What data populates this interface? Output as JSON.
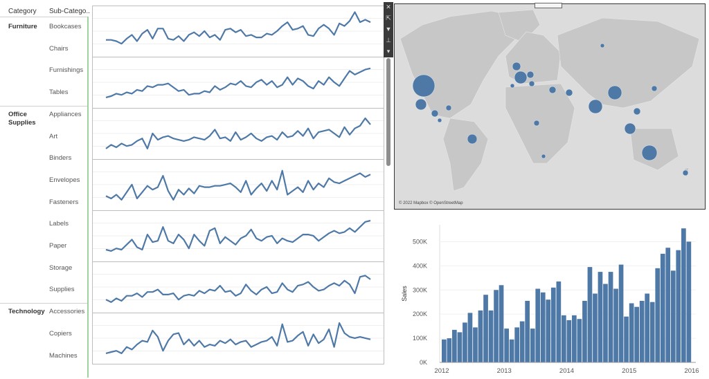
{
  "headers": {
    "category": "Category",
    "subcategory": "Sub-Catego.."
  },
  "categories": [
    {
      "name": "Furniture",
      "subcategories": [
        "Bookcases",
        "Chairs",
        "Furnishings",
        "Tables"
      ]
    },
    {
      "name": "Office\nSupplies",
      "subcategories": [
        "Appliances",
        "Art",
        "Binders",
        "Envelopes",
        "Fasteners",
        "Labels",
        "Paper",
        "Storage",
        "Supplies"
      ]
    },
    {
      "name": "Technology",
      "subcategories": [
        "Accessories",
        "Copiers",
        "Machines"
      ]
    }
  ],
  "toolbar_icons": [
    "close-icon",
    "popout-icon",
    "filter-icon",
    "pin-icon",
    "dropdown-icon"
  ],
  "map": {
    "credit": "© 2022 Mapbox © OpenStreetMap"
  },
  "colors": {
    "series": "#4e79a7",
    "map_land": "#c7c7c7",
    "map_water": "#dcdcdc"
  },
  "chart_data": [
    {
      "type": "line",
      "title": "",
      "grid": true,
      "series": [
        {
          "values": [
            20,
            20,
            18,
            14,
            22,
            28,
            18,
            30,
            36,
            22,
            38,
            38,
            22,
            20,
            26,
            18,
            28,
            32,
            26,
            34,
            24,
            28,
            20,
            36,
            38,
            32,
            36,
            26,
            28,
            24,
            24,
            30,
            28,
            34,
            42,
            48,
            36,
            38,
            42,
            28,
            26,
            38,
            44,
            38,
            28,
            46,
            42,
            50,
            64,
            48,
            52,
            48
          ]
        },
        {
          "values": [
            10,
            12,
            16,
            14,
            18,
            16,
            22,
            20,
            28,
            26,
            30,
            30,
            32,
            26,
            20,
            22,
            14,
            16,
            16,
            20,
            18,
            28,
            22,
            26,
            32,
            30,
            36,
            28,
            26,
            34,
            38,
            30,
            36,
            26,
            30,
            42,
            30,
            40,
            36,
            28,
            24,
            36,
            30,
            42,
            34,
            28,
            40,
            52,
            46,
            50,
            54,
            56
          ]
        },
        {
          "values": [
            10,
            16,
            12,
            18,
            14,
            16,
            22,
            26,
            10,
            34,
            24,
            28,
            30,
            26,
            24,
            22,
            24,
            28,
            26,
            24,
            30,
            40,
            26,
            28,
            22,
            36,
            24,
            28,
            34,
            26,
            22,
            28,
            30,
            24,
            36,
            28,
            30,
            38,
            30,
            42,
            26,
            36,
            38,
            40,
            34,
            28,
            44,
            32,
            42,
            46,
            58,
            48
          ]
        },
        {
          "values": [
            16,
            12,
            18,
            10,
            22,
            34,
            12,
            22,
            32,
            26,
            30,
            48,
            24,
            10,
            26,
            18,
            28,
            20,
            32,
            30,
            30,
            32,
            32,
            34,
            36,
            30,
            22,
            40,
            18,
            28,
            36,
            24,
            40,
            26,
            56,
            18,
            24,
            30,
            22,
            40,
            26,
            36,
            30,
            44,
            38,
            36,
            40,
            44,
            48,
            52,
            46,
            50
          ]
        },
        {
          "values": [
            12,
            10,
            14,
            12,
            20,
            28,
            16,
            12,
            36,
            24,
            26,
            48,
            26,
            22,
            36,
            28,
            14,
            36,
            26,
            18,
            42,
            46,
            22,
            32,
            26,
            20,
            30,
            34,
            44,
            30,
            26,
            32,
            34,
            22,
            30,
            26,
            24,
            30,
            36,
            36,
            34,
            26,
            32,
            38,
            42,
            38,
            40,
            46,
            40,
            48,
            56,
            58
          ]
        },
        {
          "values": [
            14,
            10,
            16,
            12,
            20,
            20,
            24,
            18,
            26,
            26,
            30,
            22,
            22,
            24,
            14,
            20,
            22,
            20,
            28,
            24,
            30,
            28,
            36,
            26,
            28,
            20,
            24,
            38,
            28,
            22,
            30,
            34,
            24,
            26,
            40,
            30,
            26,
            36,
            38,
            42,
            34,
            28,
            30,
            36,
            40,
            36,
            44,
            38,
            24,
            50,
            52,
            46
          ]
        },
        {
          "values": [
            10,
            12,
            14,
            10,
            20,
            16,
            24,
            30,
            28,
            46,
            36,
            14,
            30,
            40,
            42,
            24,
            32,
            22,
            30,
            20,
            24,
            22,
            30,
            26,
            32,
            24,
            28,
            30,
            20,
            24,
            28,
            30,
            36,
            22,
            56,
            28,
            30,
            38,
            44,
            22,
            40,
            26,
            32,
            48,
            20,
            58,
            42,
            36,
            34,
            36,
            34,
            32
          ]
        }
      ]
    },
    {
      "type": "bar",
      "title": "",
      "ylabel": "Sales",
      "xlabel": "",
      "ylim": [
        0,
        570000
      ],
      "yticks": [
        "0K",
        "100K",
        "200K",
        "300K",
        "400K",
        "500K"
      ],
      "xticks": [
        "2012",
        "2013",
        "2014",
        "2015",
        "2016"
      ],
      "values": [
        95000,
        100000,
        135000,
        125000,
        165000,
        205000,
        145000,
        215000,
        280000,
        215000,
        300000,
        320000,
        140000,
        95000,
        145000,
        170000,
        255000,
        140000,
        305000,
        290000,
        260000,
        310000,
        335000,
        195000,
        175000,
        195000,
        180000,
        255000,
        395000,
        285000,
        375000,
        325000,
        375000,
        305000,
        405000,
        190000,
        245000,
        230000,
        255000,
        285000,
        250000,
        390000,
        450000,
        475000,
        380000,
        465000,
        555000,
        500000
      ]
    }
  ]
}
